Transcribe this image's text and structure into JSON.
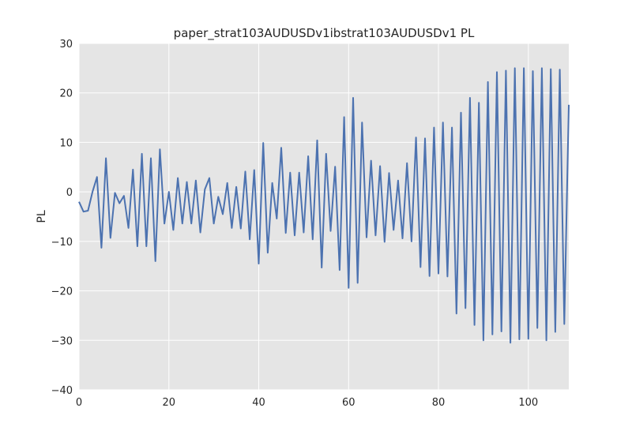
{
  "chart_data": {
    "type": "line",
    "title": "paper_strat103AUDUSDv1ibstrat103AUDUSDv1 PL",
    "xlabel": "",
    "ylabel": "PL",
    "xlim": [
      0,
      109
    ],
    "ylim": [
      -40,
      30
    ],
    "xticks": [
      0,
      20,
      40,
      60,
      80,
      100
    ],
    "yticks": [
      -40,
      -30,
      -20,
      -10,
      0,
      10,
      20,
      30
    ],
    "xtick_labels": [
      "0",
      "20",
      "40",
      "60",
      "80",
      "100"
    ],
    "ytick_labels": [
      "−40",
      "−30",
      "−20",
      "−10",
      "0",
      "10",
      "20",
      "30"
    ],
    "grid": true,
    "line_color": "#4c72b0",
    "background_color": "#e5e5e5",
    "x": [
      0,
      1,
      2,
      3,
      4,
      5,
      6,
      7,
      8,
      9,
      10,
      11,
      12,
      13,
      14,
      15,
      16,
      17,
      18,
      19,
      20,
      21,
      22,
      23,
      24,
      25,
      26,
      27,
      28,
      29,
      30,
      31,
      32,
      33,
      34,
      35,
      36,
      37,
      38,
      39,
      40,
      41,
      42,
      43,
      44,
      45,
      46,
      47,
      48,
      49,
      50,
      51,
      52,
      53,
      54,
      55,
      56,
      57,
      58,
      59,
      60,
      61,
      62,
      63,
      64,
      65,
      66,
      67,
      68,
      69,
      70,
      71,
      72,
      73,
      74,
      75,
      76,
      77,
      78,
      79,
      80,
      81,
      82,
      83,
      84,
      85,
      86,
      87,
      88,
      89,
      90,
      91,
      92,
      93,
      94,
      95,
      96,
      97,
      98,
      99,
      100,
      101,
      102,
      103,
      104,
      105,
      106,
      107,
      108,
      109
    ],
    "series": [
      {
        "values": [
          -2,
          -4,
          -3.8,
          0,
          3,
          -11.3,
          6.8,
          -9.3,
          -0.2,
          -2.3,
          -0.8,
          -7.3,
          4.5,
          -11,
          7.7,
          -11,
          6.8,
          -14,
          8.6,
          -6.4,
          0,
          -7.7,
          2.8,
          -6.4,
          2,
          -6.4,
          2.3,
          -8.2,
          0.5,
          2.8,
          -6.4,
          -1,
          -4.5,
          1.8,
          -7.3,
          1,
          -7.4,
          4.1,
          -9.6,
          4.4,
          -14.5,
          9.9,
          -12.3,
          1.8,
          -5.4,
          8.9,
          -8.3,
          3.9,
          -8.8,
          3.9,
          -8.2,
          7.2,
          -9.6,
          10.4,
          -15.3,
          7.7,
          -7.9,
          5.1,
          -15.8,
          15.1,
          -19.4,
          19,
          -18.4,
          14,
          -9.2,
          6.3,
          -8.8,
          5.2,
          -10.1,
          3.8,
          -7.7,
          2.3,
          -9.4,
          5.8,
          -10,
          11,
          -15.2,
          10.8,
          -17,
          13,
          -16.5,
          14,
          -17.1,
          13,
          -24.6,
          16,
          -23.5,
          19,
          -26.9,
          18,
          -30,
          22.2,
          -28.8,
          24.2,
          -28.2,
          24.5,
          -30.5,
          25,
          -29.8,
          25,
          -29.7,
          24.4,
          -27.5,
          25,
          -30,
          24.8,
          -28.3,
          24.7,
          -26.7,
          17.6
        ]
      }
    ]
  }
}
